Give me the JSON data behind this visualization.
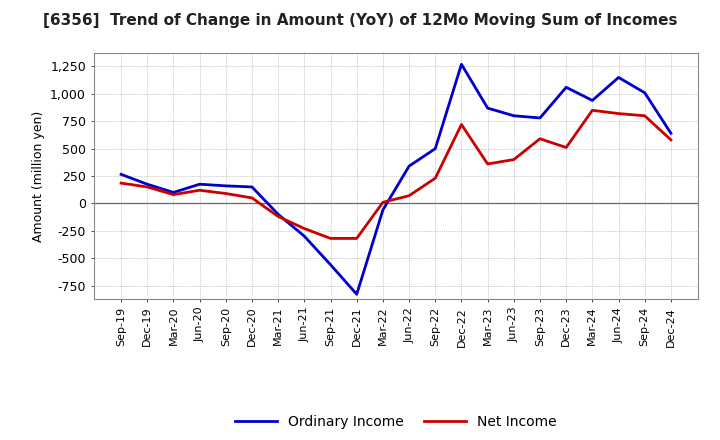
{
  "title": "[6356]  Trend of Change in Amount (YoY) of 12Mo Moving Sum of Incomes",
  "ylabel": "Amount (million yen)",
  "x_labels": [
    "Sep-19",
    "Dec-19",
    "Mar-20",
    "Jun-20",
    "Sep-20",
    "Dec-20",
    "Mar-21",
    "Jun-21",
    "Sep-21",
    "Dec-21",
    "Mar-22",
    "Jun-22",
    "Sep-22",
    "Dec-22",
    "Mar-23",
    "Jun-23",
    "Sep-23",
    "Dec-23",
    "Mar-24",
    "Jun-24",
    "Sep-24",
    "Dec-24"
  ],
  "ordinary_income": [
    265,
    175,
    100,
    175,
    160,
    150,
    -100,
    -300,
    -560,
    -830,
    -60,
    340,
    500,
    1270,
    870,
    800,
    780,
    1060,
    940,
    1150,
    1010,
    640
  ],
  "net_income": [
    185,
    150,
    80,
    120,
    90,
    50,
    -120,
    -230,
    -320,
    -320,
    10,
    70,
    230,
    720,
    360,
    400,
    590,
    510,
    850,
    820,
    800,
    580
  ],
  "ordinary_income_color": "#0000cc",
  "net_income_color": "#cc0000",
  "line_width": 2.0,
  "ylim": [
    -875,
    1375
  ],
  "yticks": [
    -750,
    -500,
    -250,
    0,
    250,
    500,
    750,
    1000,
    1250
  ],
  "background_color": "#ffffff",
  "grid_color": "#999999",
  "title_fontsize": 11,
  "axis_fontsize": 9,
  "legend_fontsize": 10
}
